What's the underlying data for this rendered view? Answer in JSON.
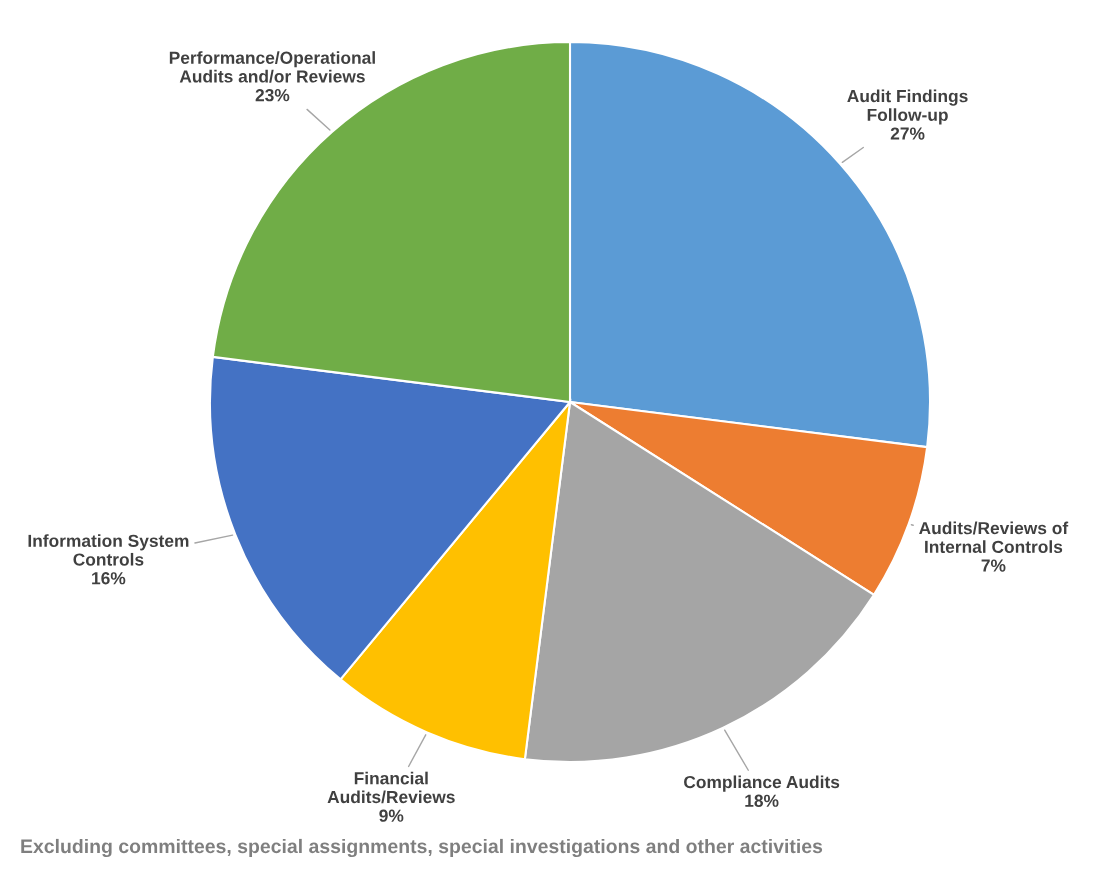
{
  "chart_data": {
    "type": "pie",
    "categories": [
      "Audit Findings\nFollow-up",
      "Audits/Reviews of\nInternal Controls",
      "Compliance Audits",
      "Financial\nAudits/Reviews",
      "Information System\nControls",
      "Performance/Operational\nAudits and/or Reviews"
    ],
    "values": [
      27,
      7,
      18,
      9,
      16,
      23
    ],
    "value_labels": [
      "27%",
      "7%",
      "18%",
      "9%",
      "16%",
      "23%"
    ],
    "colors": [
      "#5b9bd5",
      "#ed7d31",
      "#a5a5a5",
      "#ffc000",
      "#4472c4",
      "#70ad47"
    ],
    "legend": false,
    "annotations": [
      "Excluding committees, special assignments, special investigations and other activities"
    ]
  }
}
